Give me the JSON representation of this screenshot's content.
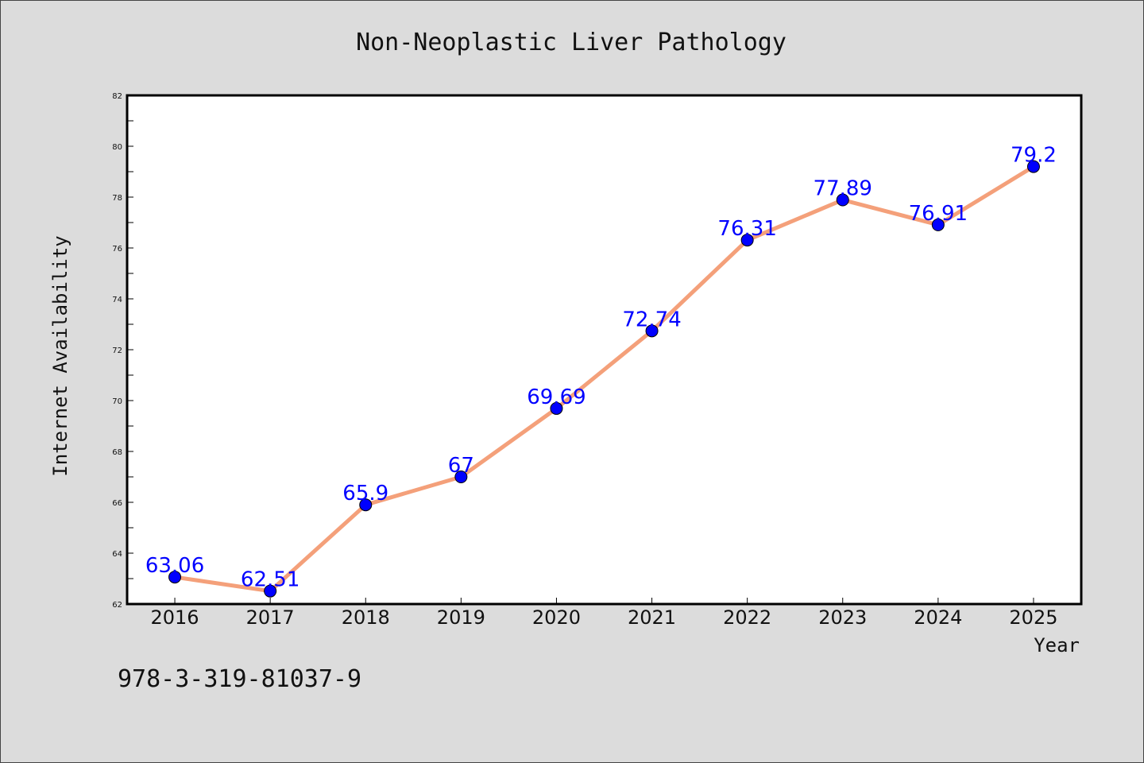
{
  "chart_data": {
    "type": "line",
    "title": "Non-Neoplastic Liver Pathology",
    "xlabel": "Year",
    "ylabel": "Internet Availability",
    "categories": [
      "2016",
      "2017",
      "2018",
      "2019",
      "2020",
      "2021",
      "2022",
      "2023",
      "2024",
      "2025"
    ],
    "series": [
      {
        "values": [
          63.06,
          62.51,
          65.9,
          67,
          69.69,
          72.74,
          76.31,
          77.89,
          76.91,
          79.2
        ],
        "labels": [
          "63.06",
          "62.51",
          "65.9",
          "67",
          "69.69",
          "72.74",
          "76.31",
          "77.89",
          "76.91",
          "79.2"
        ]
      }
    ],
    "ylim": [
      62,
      82
    ],
    "yticks": [
      62,
      64,
      66,
      68,
      70,
      72,
      74,
      76,
      78,
      80,
      82
    ],
    "grid": false,
    "line_color": "#f4a07a",
    "marker_color": "#0000ff",
    "label_color": "#0000ff"
  },
  "annotation": "978-3-319-81037-9",
  "colors": {
    "background": "#dcdcdc",
    "plot_area": "#ffffff"
  }
}
